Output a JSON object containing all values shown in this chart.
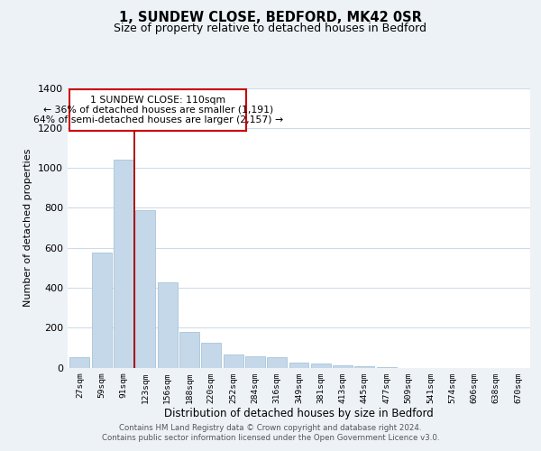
{
  "title": "1, SUNDEW CLOSE, BEDFORD, MK42 0SR",
  "subtitle": "Size of property relative to detached houses in Bedford",
  "xlabel": "Distribution of detached houses by size in Bedford",
  "ylabel": "Number of detached properties",
  "bar_color": "#c5d8ea",
  "bar_edge_color": "#a8c4d8",
  "background_color": "#edf2f7",
  "plot_bg_color": "#ffffff",
  "grid_color": "#cdd9e5",
  "annotation_line_color": "#aa0000",
  "annotation_box_color": "#cc0000",
  "bins": [
    "27sqm",
    "59sqm",
    "91sqm",
    "123sqm",
    "156sqm",
    "188sqm",
    "220sqm",
    "252sqm",
    "284sqm",
    "316sqm",
    "349sqm",
    "381sqm",
    "413sqm",
    "445sqm",
    "477sqm",
    "509sqm",
    "541sqm",
    "574sqm",
    "606sqm",
    "638sqm",
    "670sqm"
  ],
  "values": [
    50,
    575,
    1042,
    790,
    425,
    178,
    125,
    65,
    55,
    50,
    25,
    20,
    12,
    5,
    3,
    0,
    0,
    0,
    0,
    0,
    0
  ],
  "red_line_x": 2.5,
  "annotation_line1": "1 SUNDEW CLOSE: 110sqm",
  "annotation_line2": "← 36% of detached houses are smaller (1,191)",
  "annotation_line3": "64% of semi-detached houses are larger (2,157) →",
  "ylim": [
    0,
    1400
  ],
  "yticks": [
    0,
    200,
    400,
    600,
    800,
    1000,
    1200,
    1400
  ],
  "footer_line1": "Contains HM Land Registry data © Crown copyright and database right 2024.",
  "footer_line2": "Contains public sector information licensed under the Open Government Licence v3.0."
}
